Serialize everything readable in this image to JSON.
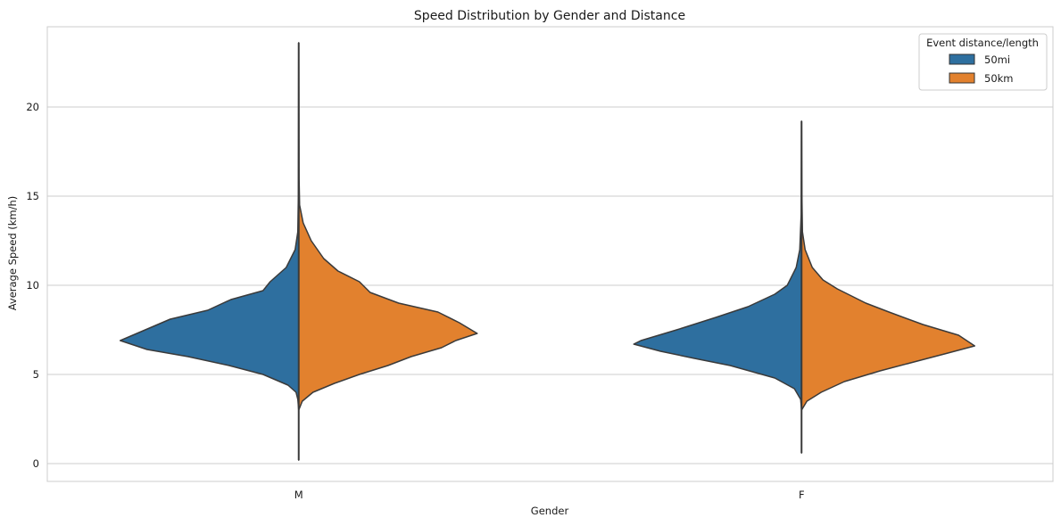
{
  "chart_data": {
    "type": "violin",
    "title": "Speed Distribution by Gender and Distance",
    "xlabel": "Gender",
    "ylabel": "Average Speed (km/h)",
    "categories": [
      "M",
      "F"
    ],
    "ylim": [
      -1,
      24.5
    ],
    "yticks": [
      0,
      5,
      10,
      15,
      20
    ],
    "grid": true,
    "split": true,
    "legend": {
      "title": "Event distance/length",
      "placement": "top-right",
      "entries": [
        "50mi",
        "50km"
      ]
    },
    "series": [
      {
        "name": "50mi",
        "color": "#2e6f9f",
        "side": "left",
        "groups": [
          {
            "category": "M",
            "min": 0.2,
            "max": 23.6,
            "profile": [
              [
                0.2,
                0.0
              ],
              [
                3.0,
                0.0
              ],
              [
                3.6,
                0.005
              ],
              [
                4.0,
                0.015
              ],
              [
                4.4,
                0.06
              ],
              [
                5.0,
                0.2
              ],
              [
                5.5,
                0.39
              ],
              [
                6.0,
                0.62
              ],
              [
                6.4,
                0.85
              ],
              [
                6.9,
                1.0
              ],
              [
                7.5,
                0.86
              ],
              [
                8.1,
                0.72
              ],
              [
                8.6,
                0.51
              ],
              [
                9.2,
                0.38
              ],
              [
                9.7,
                0.2
              ],
              [
                10.2,
                0.16
              ],
              [
                11.0,
                0.07
              ],
              [
                12.0,
                0.02
              ],
              [
                13.0,
                0.005
              ],
              [
                15.0,
                0.002
              ],
              [
                23.6,
                0.0
              ]
            ]
          },
          {
            "category": "F",
            "min": 0.6,
            "max": 19.2,
            "profile": [
              [
                0.6,
                0.0
              ],
              [
                3.0,
                0.0
              ],
              [
                3.6,
                0.005
              ],
              [
                4.2,
                0.04
              ],
              [
                4.8,
                0.15
              ],
              [
                5.5,
                0.4
              ],
              [
                5.9,
                0.6
              ],
              [
                6.3,
                0.79
              ],
              [
                6.7,
                0.94
              ],
              [
                6.9,
                0.9
              ],
              [
                7.5,
                0.7
              ],
              [
                8.2,
                0.48
              ],
              [
                8.8,
                0.3
              ],
              [
                9.5,
                0.15
              ],
              [
                10.0,
                0.08
              ],
              [
                11.0,
                0.03
              ],
              [
                12.0,
                0.01
              ],
              [
                14.0,
                0.002
              ],
              [
                19.2,
                0.0
              ]
            ]
          }
        ]
      },
      {
        "name": "50km",
        "color": "#e2812e",
        "side": "right",
        "groups": [
          {
            "category": "M",
            "min": 0.2,
            "max": 23.6,
            "profile": [
              [
                0.2,
                0.0
              ],
              [
                3.0,
                0.0
              ],
              [
                3.5,
                0.02
              ],
              [
                4.0,
                0.08
              ],
              [
                4.5,
                0.2
              ],
              [
                5.0,
                0.34
              ],
              [
                5.5,
                0.5
              ],
              [
                6.0,
                0.63
              ],
              [
                6.5,
                0.8
              ],
              [
                6.9,
                0.88
              ],
              [
                7.3,
                1.0
              ],
              [
                7.9,
                0.9
              ],
              [
                8.5,
                0.78
              ],
              [
                9.0,
                0.56
              ],
              [
                9.6,
                0.4
              ],
              [
                10.2,
                0.34
              ],
              [
                10.8,
                0.22
              ],
              [
                11.5,
                0.14
              ],
              [
                12.5,
                0.07
              ],
              [
                13.5,
                0.025
              ],
              [
                14.5,
                0.005
              ],
              [
                16.0,
                0.002
              ],
              [
                23.6,
                0.0
              ]
            ]
          },
          {
            "category": "F",
            "min": 0.6,
            "max": 19.2,
            "profile": [
              [
                0.6,
                0.0
              ],
              [
                3.0,
                0.0
              ],
              [
                3.5,
                0.03
              ],
              [
                4.0,
                0.11
              ],
              [
                4.6,
                0.24
              ],
              [
                5.2,
                0.44
              ],
              [
                5.7,
                0.63
              ],
              [
                6.2,
                0.82
              ],
              [
                6.6,
                0.97
              ],
              [
                6.8,
                0.94
              ],
              [
                7.2,
                0.88
              ],
              [
                7.8,
                0.68
              ],
              [
                8.5,
                0.49
              ],
              [
                9.0,
                0.36
              ],
              [
                9.8,
                0.2
              ],
              [
                10.3,
                0.12
              ],
              [
                11.0,
                0.06
              ],
              [
                12.0,
                0.02
              ],
              [
                13.0,
                0.005
              ],
              [
                15.0,
                0.002
              ],
              [
                19.2,
                0.0
              ]
            ]
          }
        ]
      }
    ]
  }
}
